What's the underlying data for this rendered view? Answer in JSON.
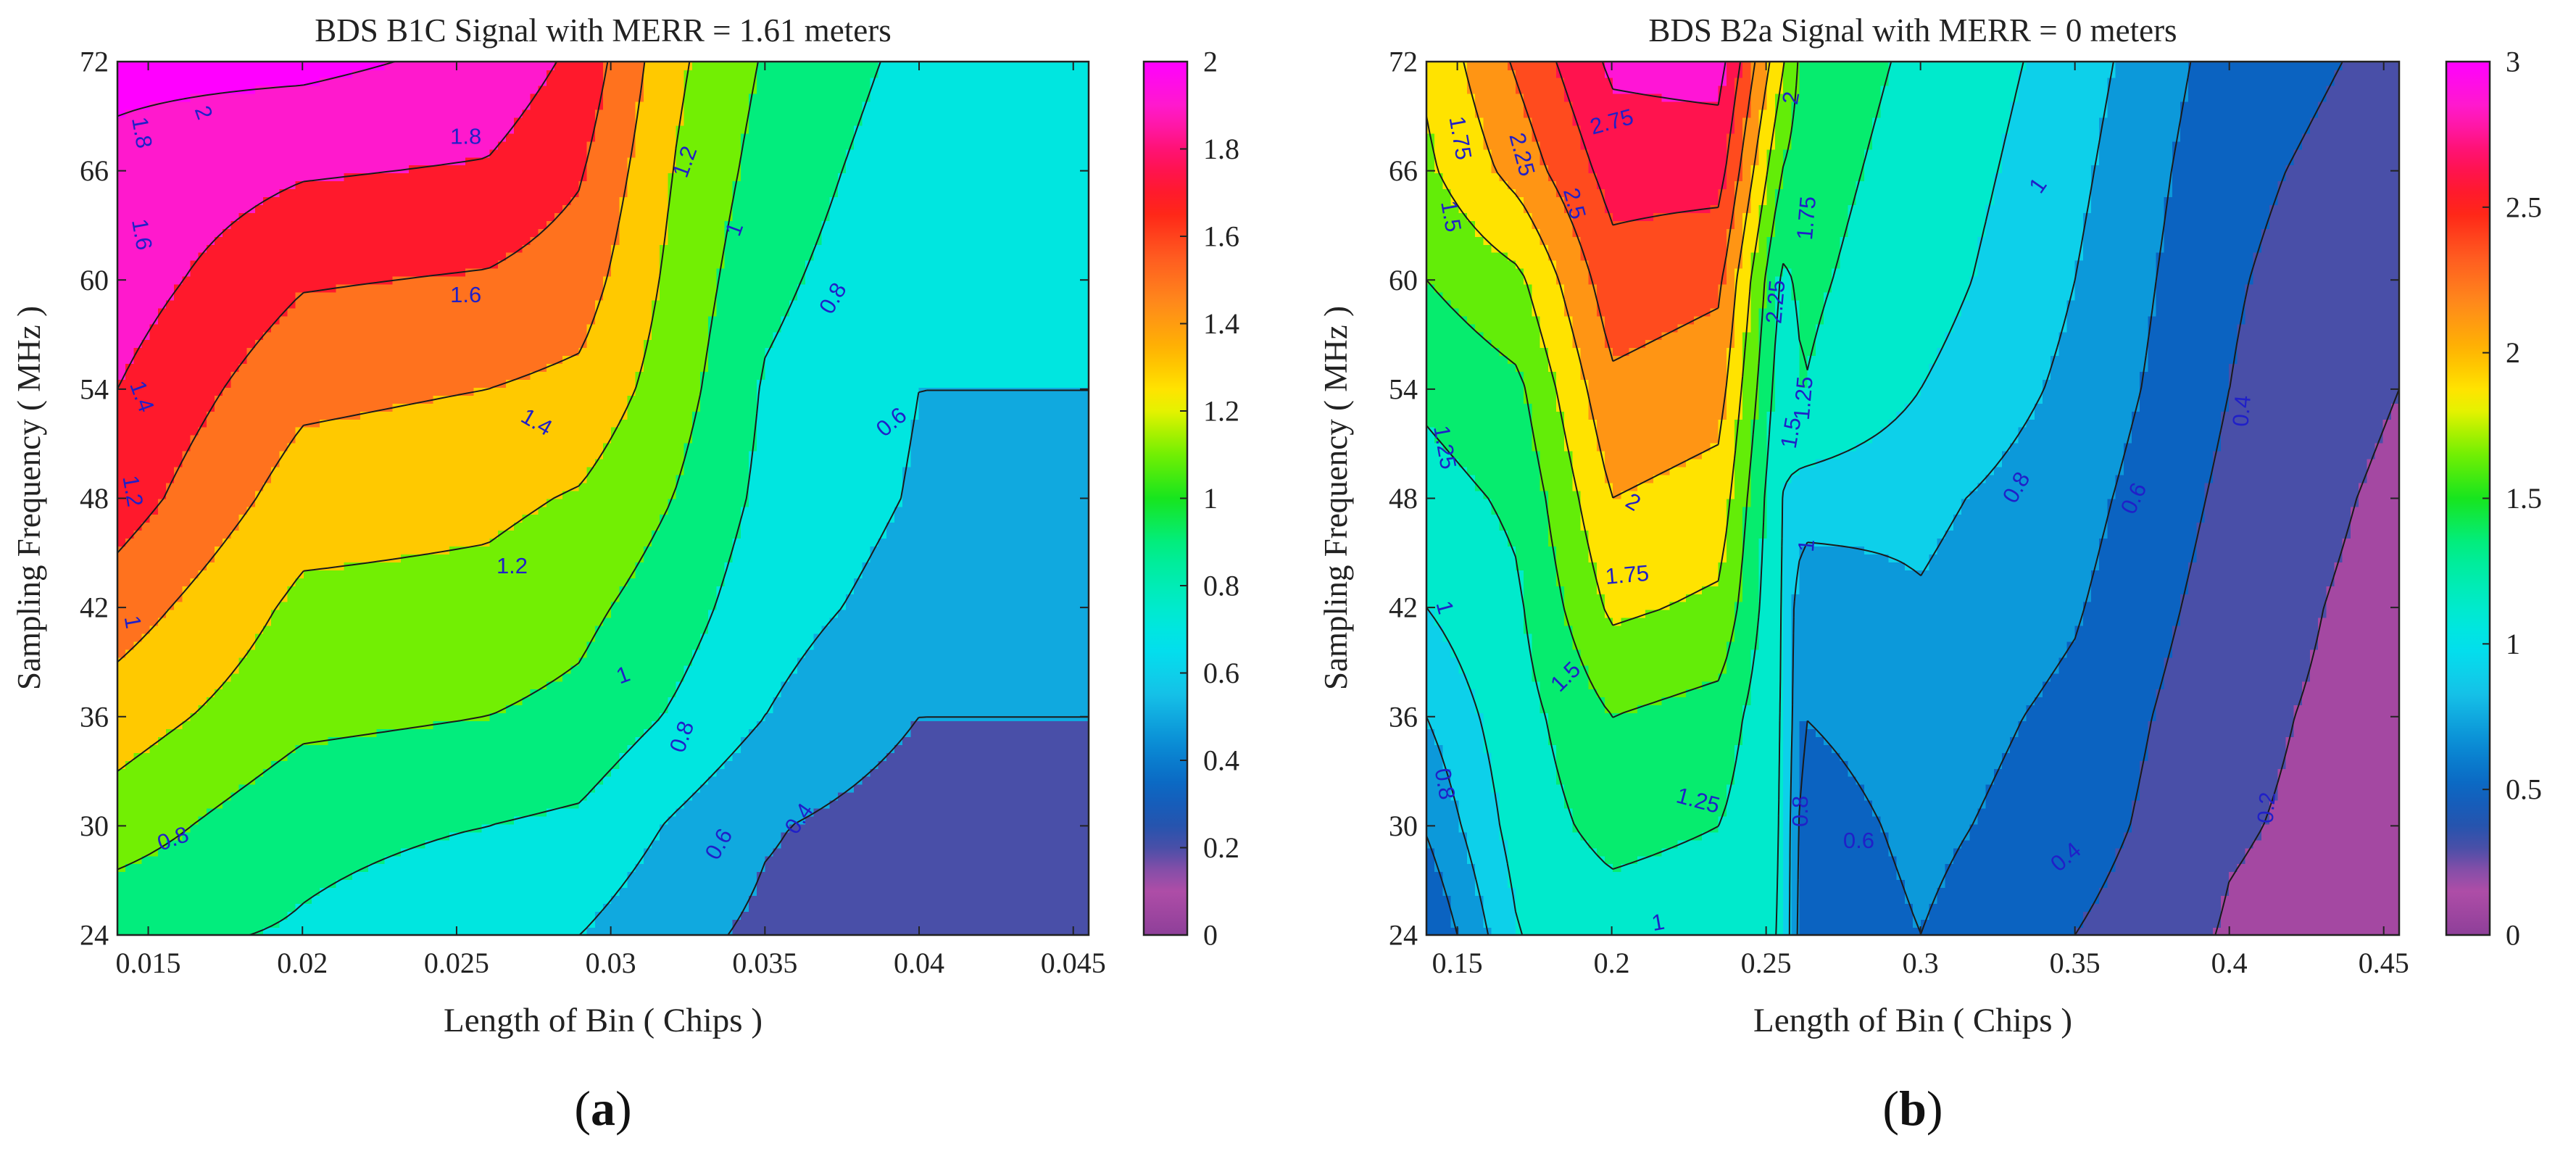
{
  "colors": {
    "colormap": [
      "#8e3f99",
      "#b24ea8",
      "#2f4fa8",
      "#0b63c1",
      "#0a8fd6",
      "#16c3e8",
      "#00e3ee",
      "#00ecc0",
      "#00ee88",
      "#17e51e",
      "#7cf000",
      "#fff200",
      "#ffb700",
      "#ff8a1b",
      "#ff5a20",
      "#ff1e16",
      "#ff0f60",
      "#ff1cc8",
      "#ff00ff"
    ],
    "contour_line": "#1a1a1a",
    "contour_label": "#2020c8",
    "axis": "#222222"
  },
  "chart_data": [
    {
      "type": "contourf",
      "panel_label": "(a)",
      "title": "BDS B1C Signal with MERR = 1.61 meters",
      "xlabel": "Length of Bin ( Chips )",
      "ylabel": "Sampling Frequency ( MHz )",
      "xlim": [
        0.014,
        0.0455
      ],
      "ylim": [
        24,
        72
      ],
      "xticks": [
        0.015,
        0.02,
        0.025,
        0.03,
        0.035,
        0.04,
        0.045
      ],
      "xtick_labels": [
        "0.015",
        "0.02",
        "0.025",
        "0.03",
        "0.035",
        "0.04",
        "0.045"
      ],
      "yticks": [
        24,
        30,
        36,
        42,
        48,
        54,
        60,
        66,
        72
      ],
      "ytick_labels": [
        "24",
        "30",
        "36",
        "42",
        "48",
        "54",
        "60",
        "66",
        "72"
      ],
      "colorbar": {
        "range": [
          0,
          2
        ],
        "ticks": [
          0,
          0.2,
          0.4,
          0.6,
          0.8,
          1,
          1.2,
          1.4,
          1.6,
          1.8,
          2
        ],
        "tick_labels": [
          "0",
          "0.2",
          "0.4",
          "0.6",
          "0.8",
          "1",
          "1.2",
          "1.4",
          "1.6",
          "1.8",
          "2"
        ]
      },
      "levels": [
        0.4,
        0.6,
        0.8,
        1,
        1.2,
        1.4,
        1.6,
        1.8,
        2
      ],
      "field": {
        "x": [
          0.014,
          0.02,
          0.026,
          0.029,
          0.032,
          0.035,
          0.04,
          0.0455
        ],
        "y": [
          24,
          30,
          36,
          42,
          48,
          54,
          60,
          66,
          72
        ],
        "z": [
          [
            0.85,
            0.78,
            0.68,
            0.6,
            0.46,
            0.36,
            0.3,
            0.3
          ],
          [
            1.1,
            0.85,
            0.8,
            0.76,
            0.58,
            0.42,
            0.3,
            0.3
          ],
          [
            1.3,
            1.05,
            1.0,
            0.95,
            0.78,
            0.6,
            0.4,
            0.4
          ],
          [
            1.5,
            1.15,
            1.13,
            1.05,
            0.9,
            0.68,
            0.52,
            0.52
          ],
          [
            1.7,
            1.3,
            1.25,
            1.18,
            1.0,
            0.75,
            0.58,
            0.58
          ],
          [
            1.8,
            1.45,
            1.4,
            1.35,
            1.1,
            0.78,
            0.6,
            0.6
          ],
          [
            1.9,
            1.62,
            1.58,
            1.5,
            1.15,
            0.85,
            0.64,
            0.64
          ],
          [
            1.95,
            1.82,
            1.78,
            1.62,
            1.2,
            0.92,
            0.68,
            0.68
          ],
          [
            2.05,
            2.05,
            1.95,
            1.75,
            1.25,
            0.98,
            0.74,
            0.74
          ]
        ]
      },
      "contour_labels": [
        {
          "text": "1.8",
          "x": 0.0148,
          "y": 68.1,
          "angle": 80
        },
        {
          "text": "2",
          "x": 0.0168,
          "y": 69.2,
          "angle": 70
        },
        {
          "text": "1.8",
          "x": 0.0253,
          "y": 67.9,
          "angle": 0
        },
        {
          "text": "1.2",
          "x": 0.0324,
          "y": 66.5,
          "angle": -70
        },
        {
          "text": "1.6",
          "x": 0.0148,
          "y": 62.5,
          "angle": 80
        },
        {
          "text": "1",
          "x": 0.034,
          "y": 62.8,
          "angle": -70
        },
        {
          "text": "1.6",
          "x": 0.0253,
          "y": 59.2,
          "angle": 0
        },
        {
          "text": "0.8",
          "x": 0.0372,
          "y": 59.0,
          "angle": -60
        },
        {
          "text": "1.4",
          "x": 0.0148,
          "y": 53.6,
          "angle": 70
        },
        {
          "text": "1.4",
          "x": 0.0276,
          "y": 52.2,
          "angle": 30
        },
        {
          "text": "0.6",
          "x": 0.0391,
          "y": 52.2,
          "angle": -40
        },
        {
          "text": "1.2",
          "x": 0.0145,
          "y": 48.4,
          "angle": 80
        },
        {
          "text": "1.2",
          "x": 0.0268,
          "y": 44.3,
          "angle": 0
        },
        {
          "text": "1",
          "x": 0.0145,
          "y": 41.2,
          "angle": 80
        },
        {
          "text": "1",
          "x": 0.0304,
          "y": 38.3,
          "angle": -20
        },
        {
          "text": "0.8",
          "x": 0.0323,
          "y": 34.9,
          "angle": -70
        },
        {
          "text": "0.8",
          "x": 0.0158,
          "y": 29.3,
          "angle": -20
        },
        {
          "text": "0.6",
          "x": 0.0335,
          "y": 29.0,
          "angle": -60
        },
        {
          "text": "0.4",
          "x": 0.0361,
          "y": 30.4,
          "angle": -55
        }
      ]
    },
    {
      "type": "contourf",
      "panel_label": "(b)",
      "title": "BDS B2a Signal with MERR = 0 meters",
      "xlabel": "Length of Bin ( Chips )",
      "ylabel": "Sampling Frequency ( MHz )",
      "xlim": [
        0.14,
        0.455
      ],
      "ylim": [
        24,
        72
      ],
      "xticks": [
        0.15,
        0.2,
        0.25,
        0.3,
        0.35,
        0.4,
        0.45
      ],
      "xtick_labels": [
        "0.15",
        "0.2",
        "0.25",
        "0.3",
        "0.35",
        "0.4",
        "0.45"
      ],
      "yticks": [
        24,
        30,
        36,
        42,
        48,
        54,
        60,
        66,
        72
      ],
      "ytick_labels": [
        "24",
        "30",
        "36",
        "42",
        "48",
        "54",
        "60",
        "66",
        "72"
      ],
      "colorbar": {
        "range": [
          0,
          3
        ],
        "ticks": [
          0,
          0.5,
          1,
          1.5,
          2,
          2.5,
          3
        ],
        "tick_labels": [
          "0",
          "0.5",
          "1",
          "1.5",
          "2",
          "2.5",
          "3"
        ]
      },
      "levels": [
        0.2,
        0.4,
        0.6,
        0.8,
        1,
        1.25,
        1.5,
        1.75,
        2,
        2.25,
        2.5,
        2.75
      ],
      "field": {
        "x": [
          0.14,
          0.17,
          0.2,
          0.235,
          0.255,
          0.262,
          0.3,
          0.35,
          0.4,
          0.455
        ],
        "y": [
          24,
          30,
          36,
          42,
          48,
          54,
          60,
          66,
          72
        ],
        "z": [
          [
            0.4,
            1.0,
            1.1,
            1.05,
            1.0,
            0.45,
            0.6,
            0.4,
            0.18,
            0.1
          ],
          [
            0.62,
            1.1,
            1.35,
            1.25,
            1.0,
            0.5,
            0.65,
            0.5,
            0.22,
            0.12
          ],
          [
            0.8,
            1.15,
            1.5,
            1.4,
            1.0,
            0.6,
            0.7,
            0.55,
            0.25,
            0.12
          ],
          [
            1.0,
            1.22,
            1.8,
            1.7,
            1.0,
            0.65,
            0.78,
            0.62,
            0.3,
            0.12
          ],
          [
            1.15,
            1.3,
            2.0,
            1.9,
            1.0,
            0.9,
            0.85,
            0.68,
            0.35,
            0.15
          ],
          [
            1.3,
            1.45,
            2.2,
            2.1,
            1.1,
            1.25,
            1.0,
            0.75,
            0.4,
            0.2
          ],
          [
            1.5,
            1.7,
            2.4,
            2.3,
            1.2,
            1.3,
            1.1,
            0.8,
            0.42,
            0.25
          ],
          [
            1.7,
            2.1,
            2.6,
            2.6,
            1.5,
            1.35,
            1.15,
            0.85,
            0.45,
            0.3
          ],
          [
            1.8,
            2.3,
            2.8,
            2.85,
            1.8,
            1.4,
            1.2,
            0.9,
            0.5,
            0.35
          ]
        ]
      },
      "contour_labels": [
        {
          "text": "1.75",
          "x": 0.151,
          "y": 67.8,
          "angle": 80
        },
        {
          "text": "2.25",
          "x": 0.171,
          "y": 66.9,
          "angle": 75
        },
        {
          "text": "2.75",
          "x": 0.2,
          "y": 68.7,
          "angle": -15
        },
        {
          "text": "2",
          "x": 0.258,
          "y": 70.0,
          "angle": -80
        },
        {
          "text": "1.5",
          "x": 0.148,
          "y": 63.5,
          "angle": 80
        },
        {
          "text": "2.5",
          "x": 0.188,
          "y": 64.2,
          "angle": 75
        },
        {
          "text": "1.75",
          "x": 0.263,
          "y": 63.4,
          "angle": -85
        },
        {
          "text": "2.25",
          "x": 0.253,
          "y": 58.8,
          "angle": -85
        },
        {
          "text": "1",
          "x": 0.338,
          "y": 65.2,
          "angle": -55
        },
        {
          "text": "1.25",
          "x": 0.262,
          "y": 53.5,
          "angle": -85
        },
        {
          "text": "1.5",
          "x": 0.258,
          "y": 51.6,
          "angle": -80
        },
        {
          "text": "1.25",
          "x": 0.146,
          "y": 50.8,
          "angle": 80
        },
        {
          "text": "0.4",
          "x": 0.404,
          "y": 52.8,
          "angle": -85
        },
        {
          "text": "0.8",
          "x": 0.331,
          "y": 48.6,
          "angle": -60
        },
        {
          "text": "0.6",
          "x": 0.369,
          "y": 48.0,
          "angle": -65
        },
        {
          "text": "2",
          "x": 0.207,
          "y": 47.8,
          "angle": 30
        },
        {
          "text": "1",
          "x": 0.263,
          "y": 45.4,
          "angle": -85
        },
        {
          "text": "1",
          "x": 0.146,
          "y": 42.0,
          "angle": 75
        },
        {
          "text": "1.75",
          "x": 0.205,
          "y": 43.8,
          "angle": -5
        },
        {
          "text": "1.5",
          "x": 0.185,
          "y": 38.2,
          "angle": -45
        },
        {
          "text": "0.8",
          "x": 0.146,
          "y": 32.3,
          "angle": 80
        },
        {
          "text": "1.25",
          "x": 0.228,
          "y": 31.4,
          "angle": 15
        },
        {
          "text": "0.8",
          "x": 0.261,
          "y": 30.8,
          "angle": -90
        },
        {
          "text": "0.6",
          "x": 0.28,
          "y": 29.2,
          "angle": 0
        },
        {
          "text": "0.4",
          "x": 0.347,
          "y": 28.3,
          "angle": -40
        },
        {
          "text": "0.2",
          "x": 0.412,
          "y": 31.0,
          "angle": -85
        },
        {
          "text": "1",
          "x": 0.215,
          "y": 24.7,
          "angle": -10
        }
      ]
    }
  ]
}
